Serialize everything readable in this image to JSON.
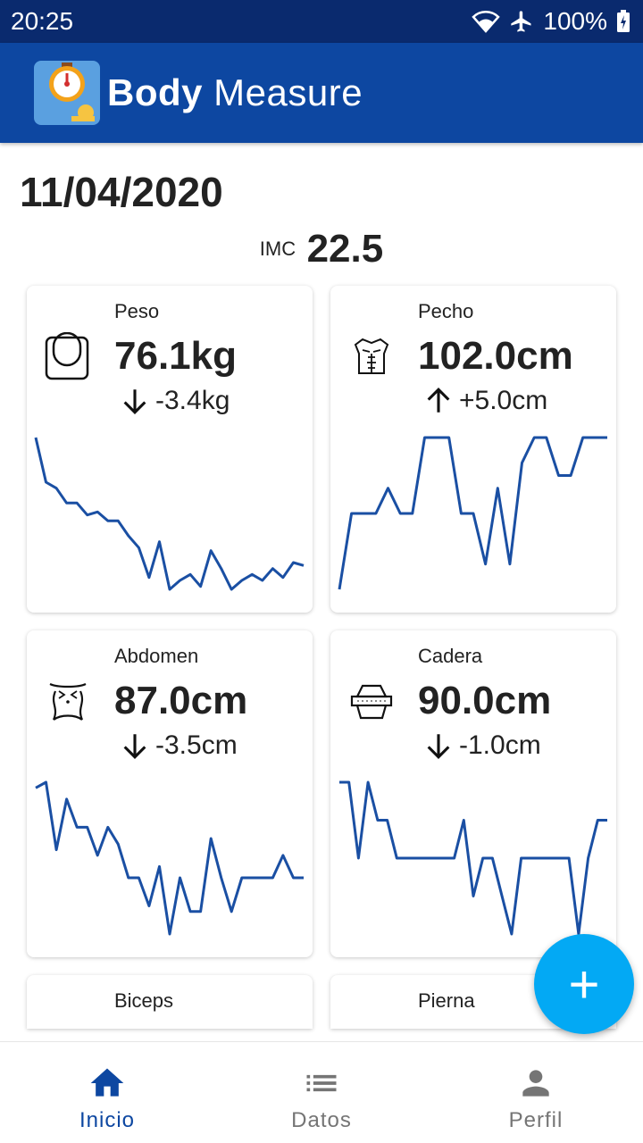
{
  "status": {
    "time": "20:25",
    "battery": "100%"
  },
  "app": {
    "title_bold": "Body",
    "title_rest": "Measure"
  },
  "summary": {
    "date": "11/04/2020",
    "imc_label": "IMC",
    "imc_value": "22.5"
  },
  "colors": {
    "accent": "#0d47a1",
    "chart_line": "#1a4fa3",
    "fab": "#03a9f4",
    "status_bar": "#0a2a6e"
  },
  "cards": [
    {
      "label": "Peso",
      "value": "76.1kg",
      "delta": "-3.4kg",
      "trend": "down",
      "icon": "scale-icon",
      "chart_data": {
        "type": "line",
        "values": [
          88,
          73,
          71,
          66,
          66,
          62,
          63,
          60,
          60,
          55,
          51,
          41,
          53,
          37,
          40,
          42,
          38,
          50,
          44,
          37,
          40,
          42,
          40,
          44,
          41,
          46,
          45
        ]
      }
    },
    {
      "label": "Pecho",
      "value": "102.0cm",
      "delta": "+5.0cm",
      "trend": "up",
      "icon": "chest-icon",
      "chart_data": {
        "type": "line",
        "values": [
          30,
          60,
          60,
          60,
          70,
          60,
          60,
          90,
          90,
          90,
          60,
          60,
          40,
          70,
          40,
          80,
          90,
          90,
          75,
          75,
          90,
          90,
          90
        ]
      }
    },
    {
      "label": "Abdomen",
      "value": "87.0cm",
      "delta": "-3.5cm",
      "trend": "down",
      "icon": "waist-icon",
      "chart_data": {
        "type": "line",
        "values": [
          90,
          95,
          35,
          80,
          55,
          55,
          30,
          55,
          40,
          10,
          10,
          -15,
          20,
          -40,
          10,
          -20,
          -20,
          45,
          10,
          -20,
          10,
          10,
          10,
          10,
          30,
          10,
          10
        ]
      }
    },
    {
      "label": "Cadera",
      "value": "90.0cm",
      "delta": "-1.0cm",
      "trend": "down",
      "icon": "hip-icon",
      "chart_data": {
        "type": "line",
        "values": [
          95,
          95,
          85,
          95,
          90,
          90,
          85,
          85,
          85,
          85,
          85,
          85,
          85,
          90,
          80,
          85,
          85,
          80,
          75,
          85,
          85,
          85,
          85,
          85,
          85,
          75,
          85,
          90,
          90
        ]
      }
    }
  ],
  "more_cards": [
    {
      "label": "Biceps"
    },
    {
      "label": "Pierna"
    }
  ],
  "fab": {
    "symbol": "+"
  },
  "nav": [
    {
      "label": "Inicio",
      "icon": "home-icon",
      "active": true
    },
    {
      "label": "Datos",
      "icon": "list-icon",
      "active": false
    },
    {
      "label": "Perfil",
      "icon": "person-icon",
      "active": false
    }
  ]
}
